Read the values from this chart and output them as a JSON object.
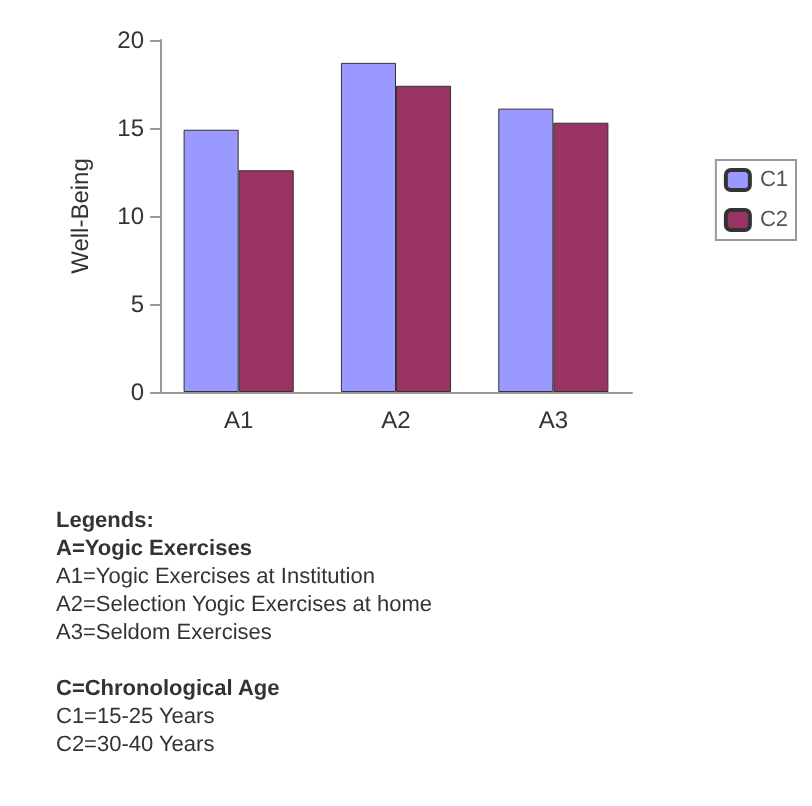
{
  "chart_data": {
    "type": "bar",
    "ylabel": "Well-Being",
    "categories": [
      "A1",
      "A2",
      "A3"
    ],
    "series": [
      {
        "name": "C1",
        "color": "#9999ff",
        "values": [
          14.9,
          18.7,
          16.1
        ]
      },
      {
        "name": "C2",
        "color": "#993366",
        "values": [
          12.6,
          17.4,
          15.3
        ]
      }
    ],
    "ylim": [
      0,
      20
    ],
    "yticks": [
      0,
      5,
      10,
      15,
      20
    ],
    "grid": false,
    "legend": "right",
    "annotations": [
      "Legends:",
      "A=Yogic Exercises",
      "A1=Yogic Exercises at Institution",
      "A2=Selection Yogic Exercises at home",
      "A3=Seldom Exercises",
      "C=Chronological Age",
      "C1=15-25 Years",
      "C2=30-40 Years"
    ]
  }
}
